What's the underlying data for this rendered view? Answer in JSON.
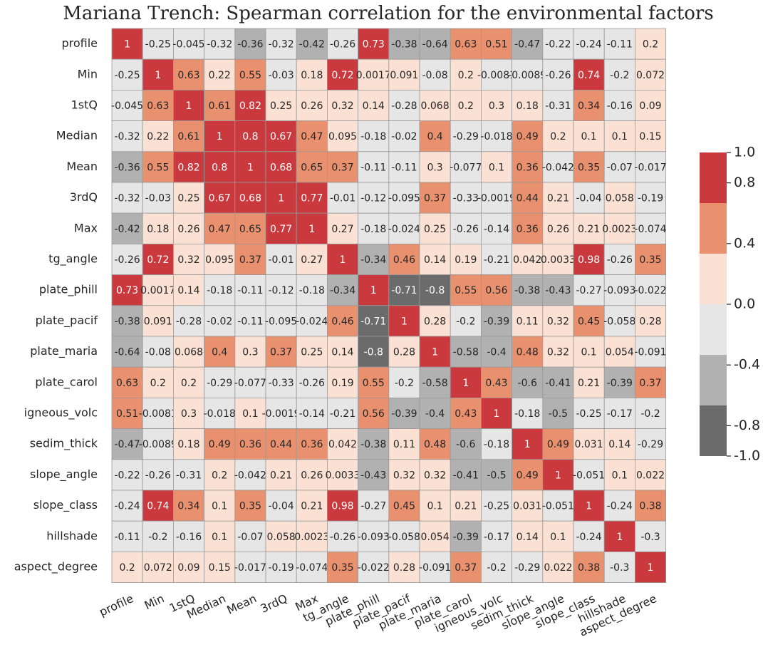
{
  "chart_data": {
    "type": "heatmap",
    "title": "Mariana Trench: Spearman correlation for the environmental factors",
    "labels": [
      "profile",
      "Min",
      "1stQ",
      "Median",
      "Mean",
      "3rdQ",
      "Max",
      "tg_angle",
      "plate_phill",
      "plate_pacif",
      "plate_maria",
      "plate_carol",
      "igneous_volc",
      "sedim_thick",
      "slope_angle",
      "slope_class",
      "hillshade",
      "aspect_degree"
    ],
    "values": [
      [
        1,
        -0.25,
        -0.045,
        -0.32,
        -0.36,
        -0.32,
        -0.42,
        -0.26,
        0.73,
        -0.38,
        -0.64,
        0.63,
        0.51,
        -0.47,
        -0.22,
        -0.24,
        -0.11,
        0.2
      ],
      [
        -0.25,
        1,
        0.63,
        0.22,
        0.55,
        -0.03,
        0.18,
        0.72,
        0.0017,
        0.091,
        -0.08,
        0.2,
        -0.0081,
        -0.0089,
        -0.26,
        0.74,
        -0.2,
        0.072
      ],
      [
        -0.045,
        0.63,
        1,
        0.61,
        0.82,
        0.25,
        0.26,
        0.32,
        0.14,
        -0.28,
        0.068,
        0.2,
        0.3,
        0.18,
        -0.31,
        0.34,
        -0.16,
        0.09
      ],
      [
        -0.32,
        0.22,
        0.61,
        1,
        0.8,
        0.67,
        0.47,
        0.095,
        -0.18,
        -0.02,
        0.4,
        -0.29,
        -0.018,
        0.49,
        0.2,
        0.1,
        0.1,
        0.15
      ],
      [
        -0.36,
        0.55,
        0.82,
        0.8,
        1,
        0.68,
        0.65,
        0.37,
        -0.11,
        -0.11,
        0.3,
        -0.077,
        0.1,
        0.36,
        -0.042,
        0.35,
        -0.07,
        -0.017
      ],
      [
        -0.32,
        -0.03,
        0.25,
        0.67,
        0.68,
        1,
        0.77,
        -0.01,
        -0.12,
        -0.095,
        0.37,
        -0.33,
        -0.0019,
        0.44,
        0.21,
        -0.04,
        0.058,
        -0.19
      ],
      [
        -0.42,
        0.18,
        0.26,
        0.47,
        0.65,
        0.77,
        1,
        0.27,
        -0.18,
        -0.024,
        0.25,
        -0.26,
        -0.14,
        0.36,
        0.26,
        0.21,
        0.0023,
        -0.074
      ],
      [
        -0.26,
        0.72,
        0.32,
        0.095,
        0.37,
        -0.01,
        0.27,
        1,
        -0.34,
        0.46,
        0.14,
        0.19,
        -0.21,
        0.042,
        0.0033,
        0.98,
        -0.26,
        0.35
      ],
      [
        0.73,
        0.0017,
        0.14,
        -0.18,
        -0.11,
        -0.12,
        -0.18,
        -0.34,
        1,
        -0.71,
        -0.8,
        0.55,
        0.56,
        -0.38,
        -0.43,
        -0.27,
        -0.093,
        -0.022
      ],
      [
        -0.38,
        0.091,
        -0.28,
        -0.02,
        -0.11,
        -0.095,
        -0.024,
        0.46,
        -0.71,
        1,
        0.28,
        -0.2,
        -0.39,
        0.11,
        0.32,
        0.45,
        -0.058,
        0.28
      ],
      [
        -0.64,
        -0.08,
        0.068,
        0.4,
        0.3,
        0.37,
        0.25,
        0.14,
        -0.8,
        0.28,
        1,
        -0.58,
        -0.4,
        0.48,
        0.32,
        0.1,
        0.054,
        -0.091
      ],
      [
        0.63,
        0.2,
        0.2,
        -0.29,
        -0.077,
        -0.33,
        -0.26,
        0.19,
        0.55,
        -0.2,
        -0.58,
        1,
        0.43,
        -0.6,
        -0.41,
        0.21,
        -0.39,
        0.37
      ],
      [
        0.51,
        -0.0081,
        0.3,
        -0.018,
        0.1,
        -0.0019,
        -0.14,
        -0.21,
        0.56,
        -0.39,
        -0.4,
        0.43,
        1,
        -0.18,
        -0.5,
        -0.25,
        -0.17,
        -0.2
      ],
      [
        -0.47,
        -0.0089,
        0.18,
        0.49,
        0.36,
        0.44,
        0.36,
        0.042,
        -0.38,
        0.11,
        0.48,
        -0.6,
        -0.18,
        1,
        0.49,
        0.031,
        0.14,
        -0.29
      ],
      [
        -0.22,
        -0.26,
        -0.31,
        0.2,
        -0.042,
        0.21,
        0.26,
        0.0033,
        -0.43,
        0.32,
        0.32,
        -0.41,
        -0.5,
        0.49,
        1,
        -0.051,
        0.1,
        0.022
      ],
      [
        -0.24,
        0.74,
        0.34,
        0.1,
        0.35,
        -0.04,
        0.21,
        0.98,
        -0.27,
        0.45,
        0.1,
        0.21,
        -0.25,
        0.031,
        -0.051,
        1,
        -0.24,
        0.38
      ],
      [
        -0.11,
        -0.2,
        -0.16,
        0.1,
        -0.07,
        0.058,
        0.0023,
        -0.26,
        -0.093,
        -0.058,
        0.054,
        -0.39,
        -0.17,
        0.14,
        0.1,
        -0.24,
        1,
        -0.3
      ],
      [
        0.2,
        0.072,
        0.09,
        0.15,
        -0.017,
        -0.19,
        -0.074,
        0.35,
        -0.022,
        0.28,
        -0.091,
        0.37,
        -0.2,
        -0.29,
        0.022,
        0.38,
        -0.3,
        1
      ]
    ],
    "clim": [
      -1,
      1
    ],
    "colors": [
      "#6b6b6b",
      "#b1b1b1",
      "#e6e6e6",
      "#fbe1d3",
      "#e9916f",
      "#c9393d"
    ],
    "cticks": [
      {
        "value": -1,
        "label": "-1.0"
      },
      -0.8,
      -0.4,
      {
        "value": 0,
        "label": "0.0"
      },
      0.4,
      0.8,
      {
        "value": 1,
        "label": "1.0"
      }
    ]
  }
}
